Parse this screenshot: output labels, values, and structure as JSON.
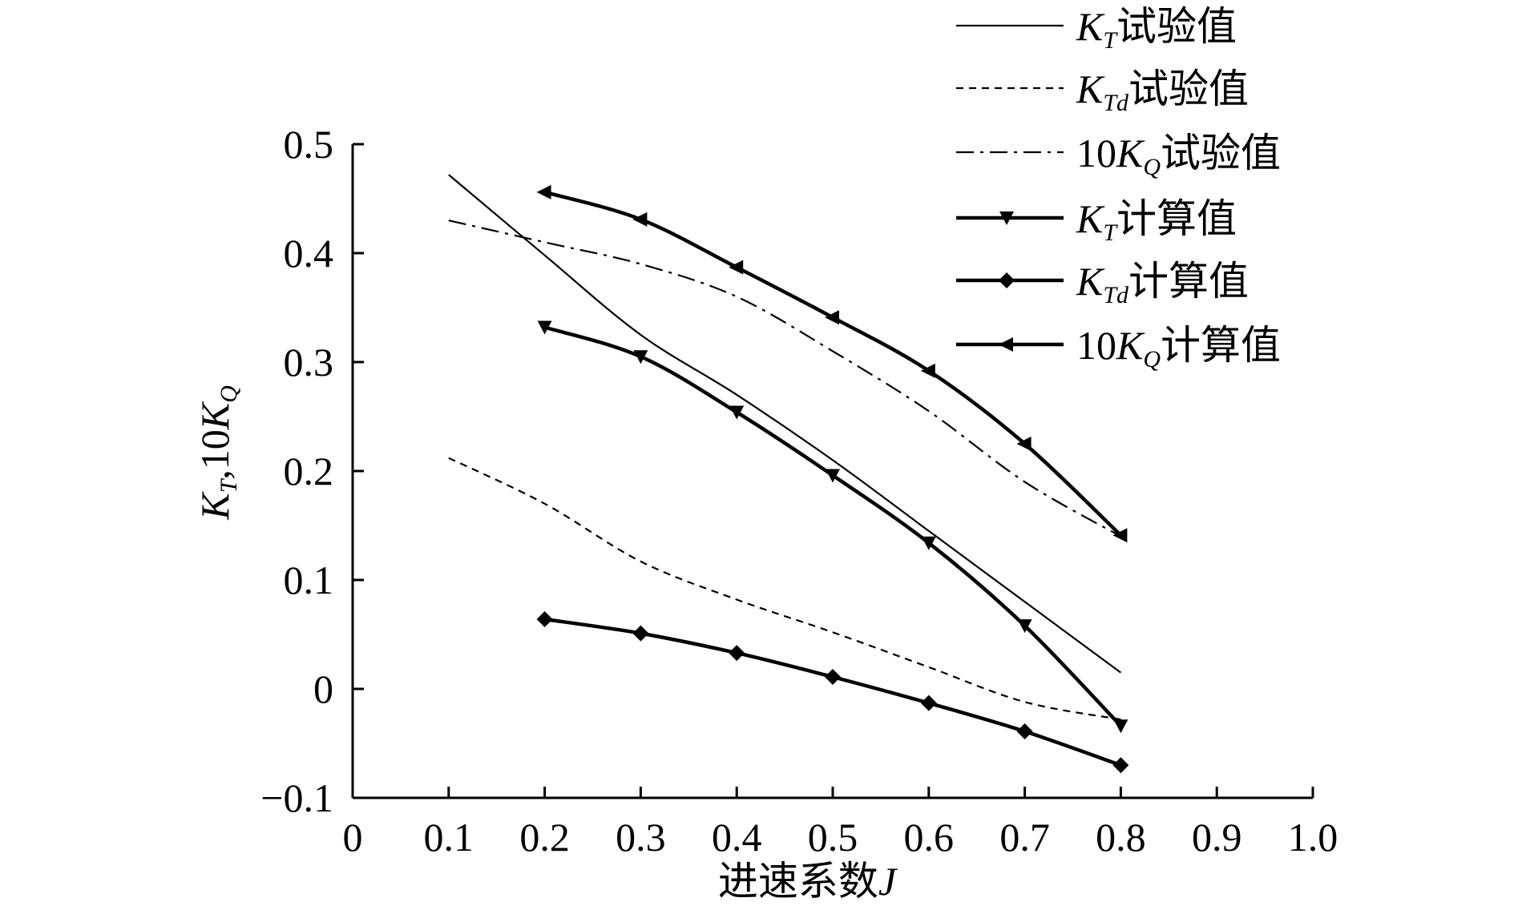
{
  "chart_data": {
    "type": "line",
    "title": "",
    "xlabel": "进速系数J",
    "ylabel": "K_T,10K_Q",
    "xlim": [
      0,
      1.0
    ],
    "ylim": [
      -0.1,
      0.5
    ],
    "x_ticks": [
      0,
      0.1,
      0.2,
      0.3,
      0.4,
      0.5,
      0.6,
      0.7,
      0.8,
      0.9,
      1.0
    ],
    "x_tick_labels": [
      "0",
      "0.1",
      "0.2",
      "0.3",
      "0.4",
      "0.5",
      "0.6",
      "0.7",
      "0.8",
      "0.9",
      "1.0"
    ],
    "y_ticks": [
      -0.1,
      0,
      0.1,
      0.2,
      0.3,
      0.4,
      0.5
    ],
    "y_tick_labels": [
      "−0.1",
      "0",
      "0.1",
      "0.2",
      "0.3",
      "0.4",
      "0.5"
    ],
    "grid": false,
    "legend_position": "top-right",
    "series": [
      {
        "name": "K_T试验值",
        "style": "solid",
        "marker": "none",
        "x": [
          0.1,
          0.2,
          0.3,
          0.4,
          0.5,
          0.6,
          0.7,
          0.8
        ],
        "y": [
          0.472,
          0.398,
          0.325,
          0.27,
          0.21,
          0.145,
          0.08,
          0.015
        ]
      },
      {
        "name": "K_Td试验值",
        "style": "dashed",
        "marker": "none",
        "x": [
          0.1,
          0.2,
          0.3,
          0.4,
          0.5,
          0.6,
          0.7,
          0.8
        ],
        "y": [
          0.212,
          0.17,
          0.117,
          0.082,
          0.052,
          0.02,
          -0.012,
          -0.028
        ]
      },
      {
        "name": "10K_Q试验值",
        "style": "dashdot",
        "marker": "none",
        "x": [
          0.1,
          0.2,
          0.3,
          0.4,
          0.5,
          0.6,
          0.7,
          0.8
        ],
        "y": [
          0.43,
          0.41,
          0.39,
          0.36,
          0.31,
          0.255,
          0.19,
          0.14
        ]
      },
      {
        "name": "K_T计算值",
        "style": "solid-bold",
        "marker": "triangle-down",
        "x": [
          0.2,
          0.3,
          0.4,
          0.5,
          0.6,
          0.7,
          0.8
        ],
        "y": [
          0.332,
          0.305,
          0.254,
          0.196,
          0.134,
          0.058,
          -0.034
        ]
      },
      {
        "name": "K_Td计算值",
        "style": "solid-bold",
        "marker": "diamond",
        "x": [
          0.2,
          0.3,
          0.4,
          0.5,
          0.6,
          0.7,
          0.8
        ],
        "y": [
          0.064,
          0.051,
          0.033,
          0.011,
          -0.013,
          -0.039,
          -0.07
        ]
      },
      {
        "name": "10K_Q计算值",
        "style": "solid-bold",
        "marker": "triangle-left",
        "x": [
          0.2,
          0.3,
          0.4,
          0.5,
          0.6,
          0.7,
          0.8
        ],
        "y": [
          0.456,
          0.431,
          0.387,
          0.341,
          0.292,
          0.225,
          0.141
        ]
      }
    ],
    "legend": [
      {
        "prefix": "",
        "symbol": "K",
        "sub": "T",
        "suffix": "试验值"
      },
      {
        "prefix": "",
        "symbol": "K",
        "sub": "Td",
        "suffix": "试验值"
      },
      {
        "prefix": "10",
        "symbol": "K",
        "sub": "Q",
        "suffix": "试验值"
      },
      {
        "prefix": "",
        "symbol": "K",
        "sub": "T",
        "suffix": "计算值"
      },
      {
        "prefix": "",
        "symbol": "K",
        "sub": "Td",
        "suffix": "计算值"
      },
      {
        "prefix": "10",
        "symbol": "K",
        "sub": "Q",
        "suffix": "计算值"
      }
    ],
    "ylabel_parts": {
      "a_sym": "K",
      "a_sub": "T",
      "sep": ",10",
      "b_sym": "K",
      "b_sub": "Q"
    },
    "xlabel_parts": {
      "text": "进速系数",
      "italic": "J"
    }
  }
}
